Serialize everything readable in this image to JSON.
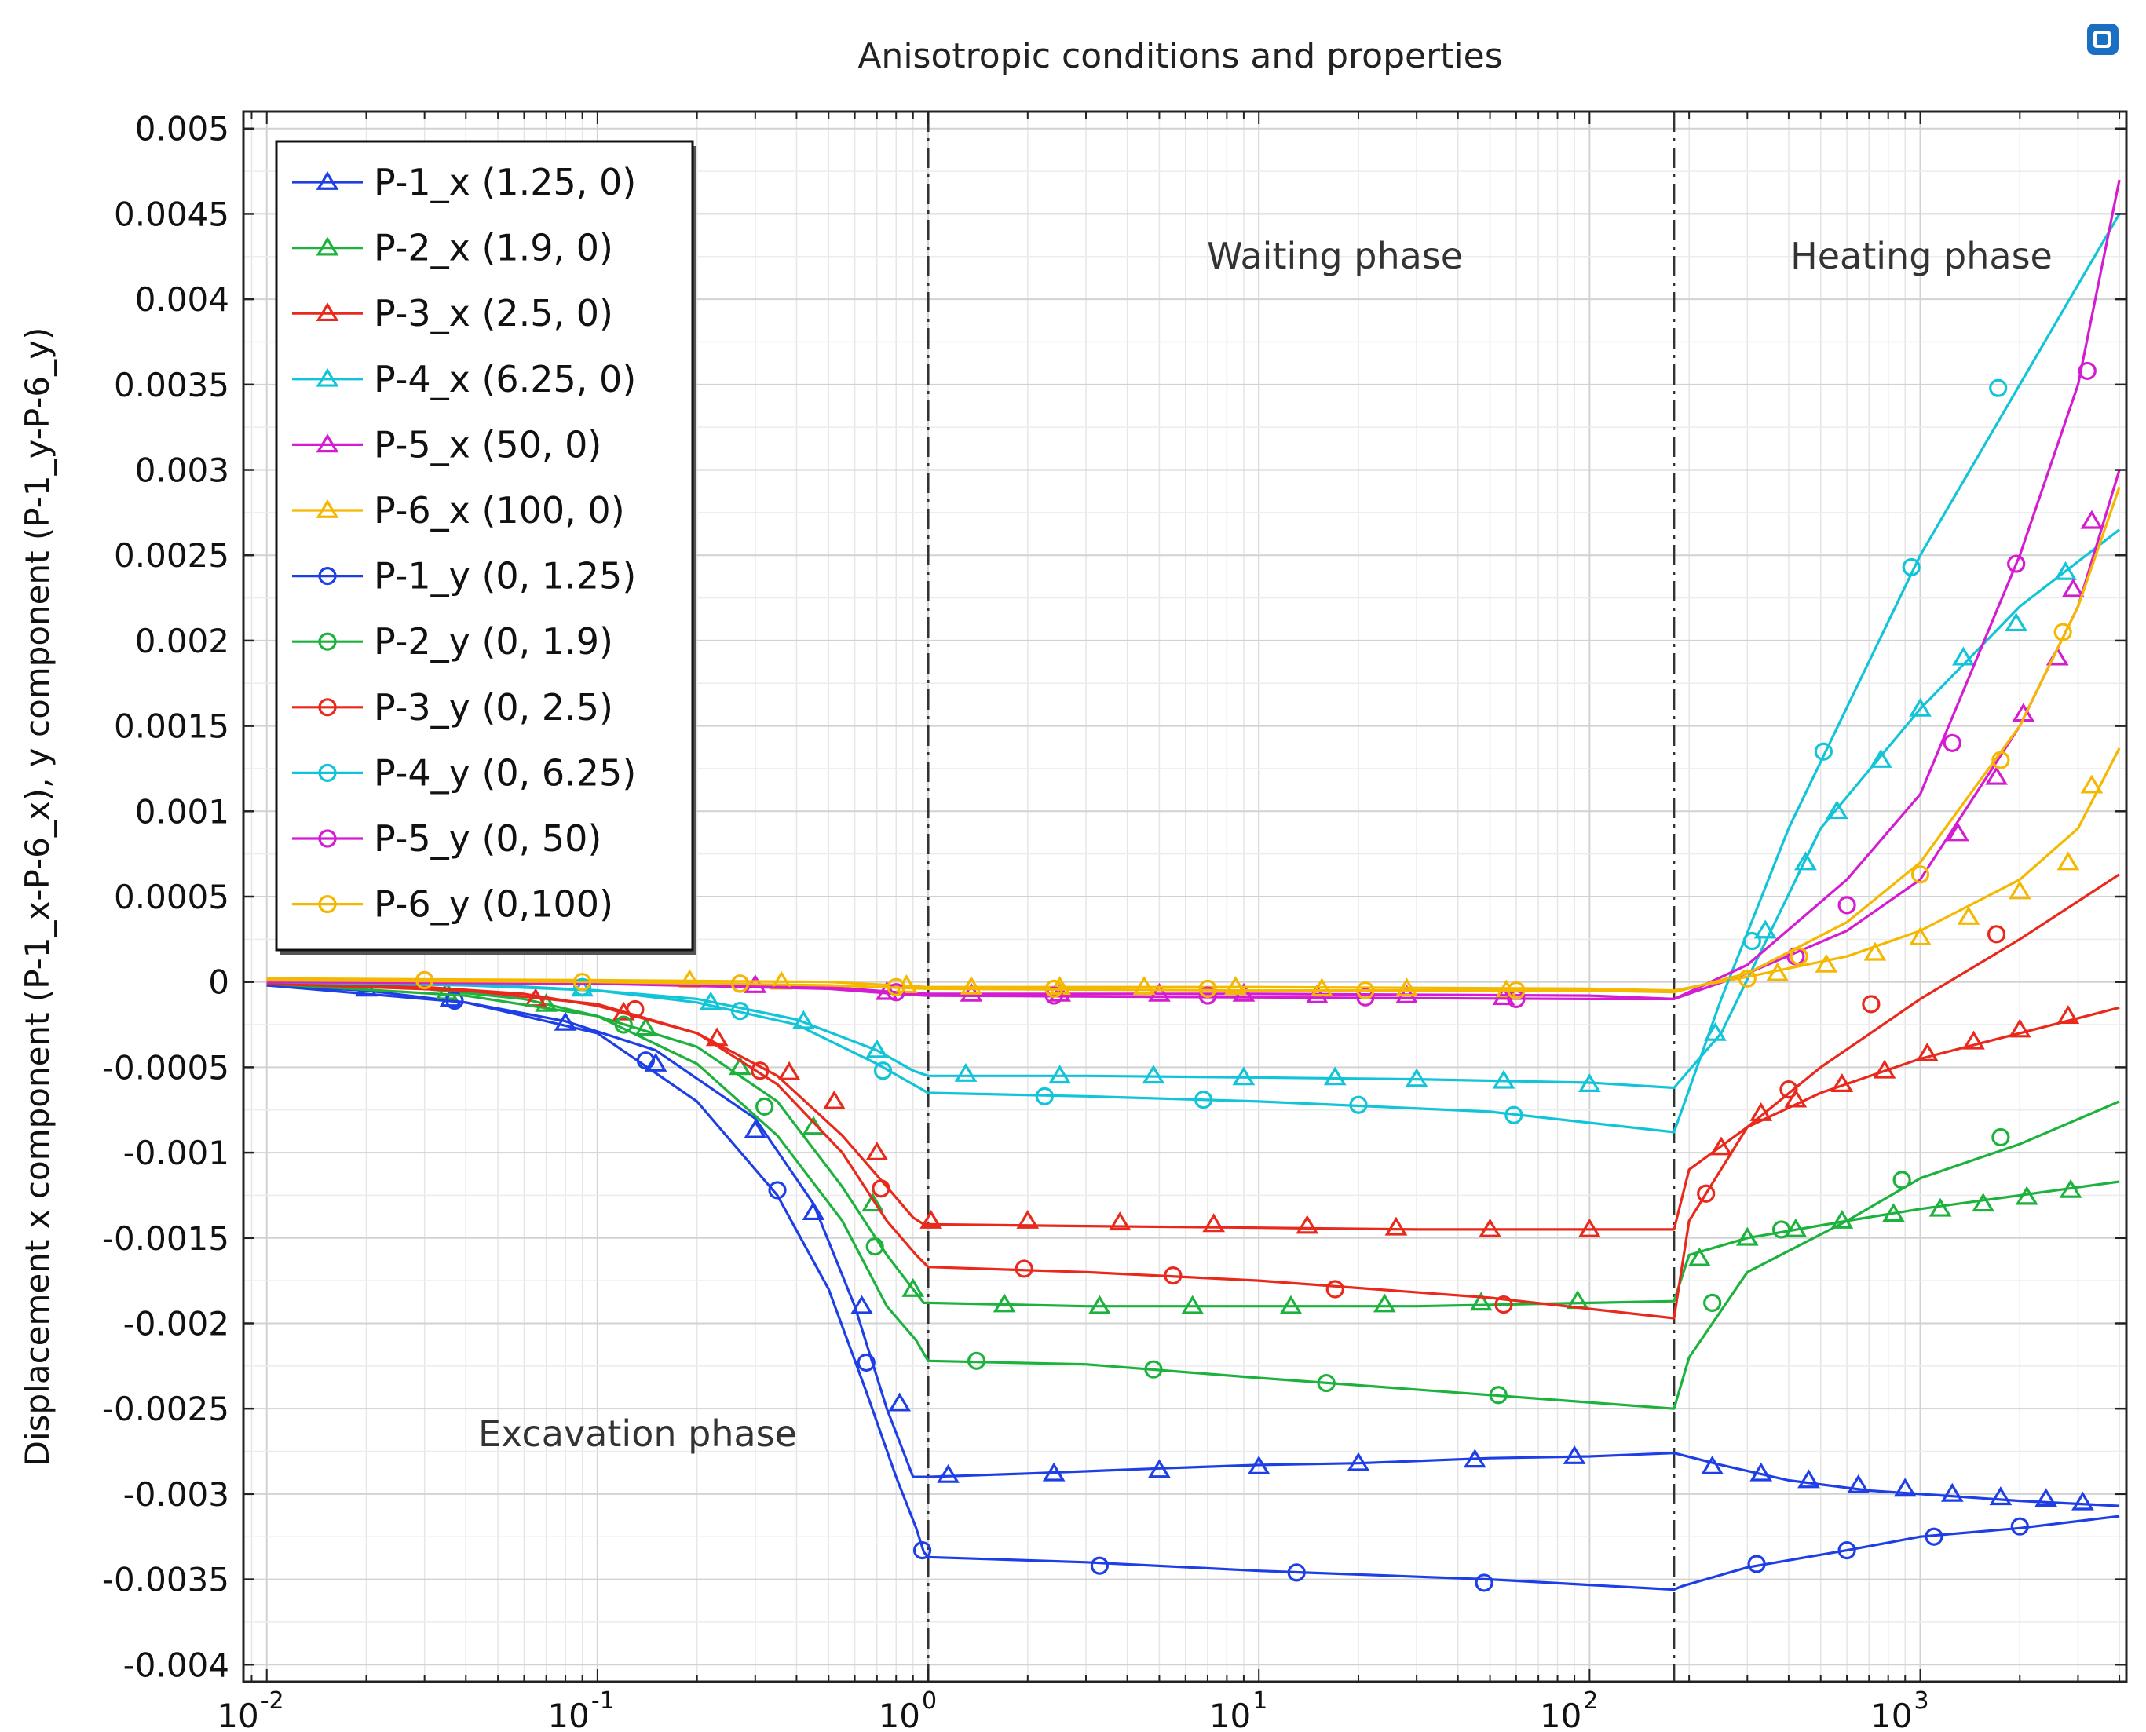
{
  "chart_data": {
    "type": "line",
    "title": "Anisotropic conditions and properties",
    "xlabel": "",
    "ylabel": "Displacement x component (P-1_x-P-6_x), y component (P-1_y-P-6_y)",
    "xscale": "log",
    "xlim": [
      0.0085,
      4200
    ],
    "ylim": [
      -0.0041,
      0.0051
    ],
    "grid": true,
    "legend_position": "top-left",
    "x_tick_labels": [
      {
        "base": "10",
        "exp": "-2",
        "value": 0.01
      },
      {
        "base": "10",
        "exp": "-1",
        "value": 0.1
      },
      {
        "base": "10",
        "exp": "0",
        "value": 1
      },
      {
        "base": "10",
        "exp": "1",
        "value": 10
      },
      {
        "base": "10",
        "exp": "2",
        "value": 100
      },
      {
        "base": "10",
        "exp": "3",
        "value": 1000
      }
    ],
    "y_ticks": [
      {
        "label": "0.005",
        "value": 0.005
      },
      {
        "label": "0.0045",
        "value": 0.0045
      },
      {
        "label": "0.004",
        "value": 0.004
      },
      {
        "label": "0.0035",
        "value": 0.0035
      },
      {
        "label": "0.003",
        "value": 0.003
      },
      {
        "label": "0.0025",
        "value": 0.0025
      },
      {
        "label": "0.002",
        "value": 0.002
      },
      {
        "label": "0.0015",
        "value": 0.0015
      },
      {
        "label": "0.001",
        "value": 0.001
      },
      {
        "label": "0.0005",
        "value": 0.0005
      },
      {
        "label": "0",
        "value": 0
      },
      {
        "label": "-0.0005",
        "value": -0.0005
      },
      {
        "label": "-0.001",
        "value": -0.001
      },
      {
        "label": "-0.0015",
        "value": -0.0015
      },
      {
        "label": "-0.002",
        "value": -0.002
      },
      {
        "label": "-0.0025",
        "value": -0.0025
      },
      {
        "label": "-0.003",
        "value": -0.003
      },
      {
        "label": "-0.0035",
        "value": -0.0035
      },
      {
        "label": "-0.004",
        "value": -0.004
      }
    ],
    "vlines": [
      1,
      180
    ],
    "annotations": [
      {
        "text": "Waiting phase",
        "x": 13,
        "y": 0.0044
      },
      {
        "text": "Heating phase",
        "x": 1000,
        "y": 0.0044
      },
      {
        "text": "Excavation phase",
        "x": 0.2,
        "y": -0.00275
      }
    ],
    "series": [
      {
        "name": "P-1_x (1.25, 0)",
        "color": "#1f3fe6",
        "marker": "triangle",
        "x": [
          0.01,
          0.02,
          0.04,
          0.08,
          0.15,
          0.3,
          0.45,
          0.6,
          0.75,
          0.9,
          0.96,
          1,
          2,
          5,
          10,
          20,
          50,
          100,
          180,
          250,
          400,
          700,
          1000,
          2000,
          4000
        ],
        "y": [
          -2e-05,
          -5e-05,
          -0.00012,
          -0.00023,
          -0.0004,
          -0.0008,
          -0.0013,
          -0.0019,
          -0.0025,
          -0.0029,
          -0.0029,
          -0.0029,
          -0.00288,
          -0.00285,
          -0.00283,
          -0.00282,
          -0.00279,
          -0.00278,
          -0.00276,
          -0.00283,
          -0.00292,
          -0.00298,
          -0.003,
          -0.00304,
          -0.00307
        ],
        "mx": [
          0.02,
          0.036,
          0.08,
          0.15,
          0.3,
          0.45,
          0.63,
          0.82,
          1.15,
          2.4,
          5,
          10,
          20,
          45,
          90,
          235,
          330,
          460,
          650,
          900,
          1250,
          1750,
          2400,
          3100
        ],
        "my": [
          -4e-05,
          -0.0001,
          -0.00024,
          -0.00048,
          -0.00087,
          -0.00135,
          -0.0019,
          -0.00247,
          -0.00289,
          -0.00288,
          -0.00286,
          -0.00284,
          -0.00282,
          -0.0028,
          -0.00278,
          -0.00284,
          -0.00288,
          -0.00292,
          -0.00295,
          -0.00297,
          -0.003,
          -0.00302,
          -0.00303,
          -0.00305
        ]
      },
      {
        "name": "P-2_x (1.9, 0)",
        "color": "#1db23d",
        "marker": "triangle",
        "x": [
          0.01,
          0.03,
          0.06,
          0.1,
          0.2,
          0.35,
          0.55,
          0.75,
          0.9,
          0.97,
          1,
          3,
          10,
          30,
          100,
          180,
          200,
          300,
          600,
          1000,
          2000,
          4000
        ],
        "y": [
          -1e-05,
          -4e-05,
          -0.0001,
          -0.0002,
          -0.00038,
          -0.0007,
          -0.0012,
          -0.0016,
          -0.0018,
          -0.00188,
          -0.00188,
          -0.0019,
          -0.0019,
          -0.0019,
          -0.00188,
          -0.00187,
          -0.0016,
          -0.0015,
          -0.0014,
          -0.00133,
          -0.00125,
          -0.00117
        ],
        "mx": [
          0.035,
          0.07,
          0.14,
          0.27,
          0.45,
          0.68,
          0.9,
          1.7,
          3.3,
          6.3,
          12.5,
          24,
          47,
          92,
          215,
          300,
          420,
          580,
          830,
          1150,
          1550,
          2100,
          2850
        ],
        "my": [
          -6e-05,
          -0.00013,
          -0.00027,
          -0.0005,
          -0.00085,
          -0.0013,
          -0.0018,
          -0.00189,
          -0.0019,
          -0.0019,
          -0.0019,
          -0.00189,
          -0.00188,
          -0.00187,
          -0.00162,
          -0.0015,
          -0.00145,
          -0.0014,
          -0.00136,
          -0.00133,
          -0.0013,
          -0.00126,
          -0.00122
        ]
      },
      {
        "name": "P-3_x (2.5, 0)",
        "color": "#e8291c",
        "marker": "triangle",
        "x": [
          0.01,
          0.03,
          0.06,
          0.1,
          0.2,
          0.35,
          0.55,
          0.75,
          0.9,
          0.97,
          1,
          3,
          10,
          30,
          100,
          180,
          200,
          300,
          500,
          1000,
          2000,
          4000
        ],
        "y": [
          -1e-05,
          -3e-05,
          -7e-05,
          -0.00014,
          -0.0003,
          -0.00055,
          -0.0009,
          -0.0012,
          -0.00138,
          -0.00142,
          -0.00142,
          -0.00143,
          -0.00144,
          -0.00145,
          -0.00145,
          -0.00145,
          -0.0011,
          -0.00085,
          -0.00065,
          -0.00045,
          -0.0003,
          -0.00015
        ],
        "mx": [
          0.065,
          0.12,
          0.23,
          0.38,
          0.52,
          0.7,
          1.02,
          2,
          3.8,
          7.3,
          14,
          26,
          50,
          100,
          250,
          330,
          420,
          580,
          780,
          1050,
          1450,
          2000,
          2800
        ],
        "my": [
          -0.0001,
          -0.00018,
          -0.00033,
          -0.00053,
          -0.0007,
          -0.001,
          -0.0014,
          -0.0014,
          -0.00141,
          -0.00142,
          -0.00143,
          -0.00144,
          -0.00145,
          -0.00145,
          -0.00097,
          -0.00077,
          -0.00069,
          -0.0006,
          -0.00052,
          -0.00042,
          -0.00035,
          -0.00028,
          -0.0002
        ]
      },
      {
        "name": "P-4_x (6.25, 0)",
        "color": "#12c4d8",
        "marker": "triangle",
        "x": [
          0.01,
          0.05,
          0.1,
          0.2,
          0.4,
          0.7,
          0.9,
          1,
          3,
          10,
          30,
          100,
          180,
          250,
          500,
          1000,
          2000,
          4000
        ],
        "y": [
          0,
          -2e-05,
          -5e-05,
          -0.0001,
          -0.00022,
          -0.0004,
          -0.00052,
          -0.00055,
          -0.00055,
          -0.00056,
          -0.00057,
          -0.00059,
          -0.00062,
          -0.0003,
          0.0009,
          0.0016,
          0.0022,
          0.00265
        ],
        "mx": [
          0.09,
          0.22,
          0.42,
          0.7,
          1.3,
          2.5,
          4.8,
          9,
          17,
          30,
          55,
          100,
          240,
          340,
          450,
          560,
          760,
          1000,
          1350,
          1950,
          2750
        ],
        "my": [
          -4e-05,
          -0.00012,
          -0.00023,
          -0.0004,
          -0.00054,
          -0.00055,
          -0.00055,
          -0.00056,
          -0.00056,
          -0.00057,
          -0.00058,
          -0.0006,
          -0.0003,
          0.0003,
          0.0007,
          0.001,
          0.0013,
          0.0016,
          0.0019,
          0.0021,
          0.0024
        ]
      },
      {
        "name": "P-5_x (50, 0)",
        "color": "#d41dd0",
        "marker": "triangle",
        "x": [
          0.01,
          0.1,
          0.5,
          0.8,
          1,
          10,
          100,
          180,
          300,
          600,
          1000,
          2000,
          3000,
          4000
        ],
        "y": [
          1e-05,
          0,
          -3e-05,
          -6e-05,
          -7e-05,
          -7e-05,
          -8e-05,
          -0.0001,
          5e-05,
          0.0003,
          0.0006,
          0.0015,
          0.0022,
          0.003
        ],
        "mx": [
          0.3,
          0.75,
          1.35,
          2.5,
          5,
          9,
          15,
          28,
          55,
          1300,
          1700,
          2050,
          2600,
          2900,
          3300
        ],
        "my": [
          -2e-05,
          -6e-05,
          -7e-05,
          -7e-05,
          -7e-05,
          -7e-05,
          -8e-05,
          -8e-05,
          -9e-05,
          0.00087,
          0.0012,
          0.00157,
          0.0019,
          0.0023,
          0.0027
        ]
      },
      {
        "name": "P-6_x (100, 0)",
        "color": "#f5b800",
        "marker": "triangle",
        "x": [
          0.01,
          0.1,
          0.5,
          1,
          10,
          100,
          180,
          300,
          600,
          1000,
          2000,
          3000,
          4000
        ],
        "y": [
          2e-05,
          1e-05,
          0,
          -3e-05,
          -3e-05,
          -4e-05,
          -5e-05,
          3e-05,
          0.00015,
          0.0003,
          0.0006,
          0.0009,
          0.00137
        ],
        "mx": [
          0.19,
          0.36,
          0.86,
          1.35,
          2.5,
          4.5,
          8.5,
          15.5,
          28,
          56,
          370,
          520,
          730,
          1000,
          1400,
          2000,
          2800,
          3300
        ],
        "my": [
          1e-05,
          0,
          -2e-05,
          -3e-05,
          -3e-05,
          -3e-05,
          -3e-05,
          -4e-05,
          -4e-05,
          -5e-05,
          5e-05,
          0.0001,
          0.00017,
          0.00026,
          0.00038,
          0.00053,
          0.0007,
          0.00115
        ]
      },
      {
        "name": "P-1_y (0, 1.25)",
        "color": "#1f3fe6",
        "marker": "circle",
        "x": [
          0.01,
          0.04,
          0.1,
          0.2,
          0.35,
          0.5,
          0.65,
          0.8,
          0.92,
          0.97,
          1,
          3,
          10,
          50,
          180,
          190,
          300,
          600,
          1000,
          2000,
          4000
        ],
        "y": [
          -2e-05,
          -0.00012,
          -0.0003,
          -0.0007,
          -0.00125,
          -0.0018,
          -0.0024,
          -0.0029,
          -0.0032,
          -0.00334,
          -0.00337,
          -0.0034,
          -0.00345,
          -0.0035,
          -0.00356,
          -0.00354,
          -0.00343,
          -0.00333,
          -0.00325,
          -0.0032,
          -0.00313
        ],
        "mx": [
          0.037,
          0.14,
          0.35,
          0.65,
          0.96,
          3.3,
          13,
          48,
          320,
          600,
          1100,
          2000
        ],
        "my": [
          -0.00011,
          -0.00046,
          -0.00122,
          -0.00223,
          -0.00333,
          -0.00342,
          -0.00346,
          -0.00352,
          -0.00341,
          -0.00333,
          -0.00325,
          -0.00319
        ]
      },
      {
        "name": "P-2_y (0, 1.9)",
        "color": "#1db23d",
        "marker": "circle",
        "x": [
          0.01,
          0.04,
          0.1,
          0.2,
          0.35,
          0.55,
          0.75,
          0.92,
          1,
          3,
          10,
          50,
          180,
          200,
          300,
          600,
          1000,
          2000,
          4000
        ],
        "y": [
          -1e-05,
          -8e-05,
          -0.0002,
          -0.00048,
          -0.0009,
          -0.0014,
          -0.0019,
          -0.0021,
          -0.00222,
          -0.00224,
          -0.00232,
          -0.00242,
          -0.0025,
          -0.0022,
          -0.0017,
          -0.0014,
          -0.00115,
          -0.00095,
          -0.0007
        ],
        "mx": [
          0.12,
          0.32,
          0.69,
          1.4,
          4.8,
          16,
          53,
          235,
          380,
          880,
          1750
        ],
        "my": [
          -0.00025,
          -0.00073,
          -0.00155,
          -0.00222,
          -0.00227,
          -0.00235,
          -0.00242,
          -0.00188,
          -0.00145,
          -0.00116,
          -0.00091
        ]
      },
      {
        "name": "P-3_y (0, 2.5)",
        "color": "#e8291c",
        "marker": "circle",
        "x": [
          0.01,
          0.04,
          0.1,
          0.2,
          0.35,
          0.55,
          0.75,
          0.92,
          1,
          3,
          10,
          50,
          180,
          200,
          300,
          500,
          1000,
          2000,
          4000
        ],
        "y": [
          -1e-05,
          -5e-05,
          -0.00013,
          -0.0003,
          -0.0006,
          -0.001,
          -0.0014,
          -0.0016,
          -0.00167,
          -0.0017,
          -0.00175,
          -0.00185,
          -0.00197,
          -0.0014,
          -0.00085,
          -0.0005,
          -0.0001,
          0.00025,
          0.00063
        ],
        "mx": [
          0.13,
          0.31,
          0.72,
          1.95,
          5.5,
          17,
          55,
          225,
          400,
          710,
          1700
        ],
        "my": [
          -0.00016,
          -0.00052,
          -0.00121,
          -0.00168,
          -0.00172,
          -0.0018,
          -0.00189,
          -0.00124,
          -0.00063,
          -0.00013,
          0.00028
        ]
      },
      {
        "name": "P-4_y (0, 6.25)",
        "color": "#12c4d8",
        "marker": "circle",
        "x": [
          0.01,
          0.04,
          0.1,
          0.2,
          0.4,
          0.7,
          0.9,
          1,
          3,
          10,
          50,
          180,
          250,
          400,
          1000,
          2000,
          4000
        ],
        "y": [
          0,
          -2e-05,
          -5e-05,
          -0.00012,
          -0.00025,
          -0.00048,
          -0.0006,
          -0.00065,
          -0.00067,
          -0.0007,
          -0.00076,
          -0.00088,
          -0.0001,
          0.0009,
          0.0025,
          0.0035,
          0.0045
        ],
        "mx": [
          0.09,
          0.27,
          0.73,
          2.25,
          6.8,
          20,
          59,
          310,
          510,
          940,
          1720
        ],
        "my": [
          -3e-05,
          -0.00017,
          -0.00052,
          -0.00067,
          -0.00069,
          -0.00072,
          -0.00078,
          0.00024,
          0.00135,
          0.00243,
          0.00348
        ]
      },
      {
        "name": "P-5_y (0, 50)",
        "color": "#d41dd0",
        "marker": "circle",
        "x": [
          0.01,
          0.1,
          0.5,
          0.8,
          1,
          10,
          100,
          180,
          300,
          600,
          1000,
          2000,
          3000,
          4000
        ],
        "y": [
          0,
          -1e-05,
          -4e-05,
          -7e-05,
          -8e-05,
          -9e-05,
          -0.0001,
          -0.0001,
          0.0001,
          0.0006,
          0.0011,
          0.0025,
          0.0035,
          0.0047
        ],
        "mx": [
          0.03,
          0.27,
          0.8,
          2.4,
          7,
          21,
          60,
          420,
          600,
          1250,
          1950,
          3200
        ],
        "my": [
          1e-05,
          -1e-05,
          -6e-05,
          -8e-05,
          -8e-05,
          -9e-05,
          -0.0001,
          0.00015,
          0.00045,
          0.0014,
          0.00245,
          0.00358
        ]
      },
      {
        "name": "P-6_y (0,100)",
        "color": "#f5b800",
        "marker": "circle",
        "x": [
          0.01,
          0.1,
          0.5,
          1,
          10,
          100,
          180,
          300,
          600,
          1000,
          2000,
          3000,
          4000
        ],
        "y": [
          1e-05,
          0,
          -2e-05,
          -4e-05,
          -5e-05,
          -5e-05,
          -6e-05,
          5e-05,
          0.00035,
          0.0007,
          0.0015,
          0.0022,
          0.0029
        ],
        "mx": [
          0.03,
          0.09,
          0.27,
          0.8,
          2.4,
          7,
          21,
          60,
          300,
          430,
          1000,
          1750,
          2700
        ],
        "my": [
          1e-05,
          0,
          -1e-05,
          -3e-05,
          -4e-05,
          -4e-05,
          -5e-05,
          -5e-05,
          2e-05,
          0.00015,
          0.00063,
          0.0013,
          0.00205
        ]
      }
    ]
  }
}
